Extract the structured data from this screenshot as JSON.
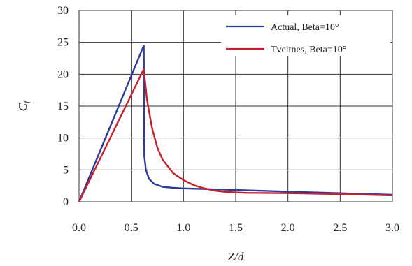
{
  "chart_data": {
    "type": "line",
    "xlabel": "Z/d",
    "ylabel_main": "C",
    "ylabel_sub": "f",
    "xlim": [
      0,
      3.0
    ],
    "ylim": [
      0,
      30
    ],
    "x_ticks": [
      "0.0",
      "0.5",
      "1.0",
      "1.5",
      "2.0",
      "2.5",
      "3.0"
    ],
    "y_ticks": [
      "0",
      "5",
      "10",
      "15",
      "20",
      "25",
      "30"
    ],
    "grid": true,
    "legend_position": "top-right",
    "series": [
      {
        "name": "Actual, Beta=10°",
        "color": "#2b3a9c",
        "points": [
          [
            0,
            0
          ],
          [
            0.62,
            24.5
          ],
          [
            0.625,
            7.2
          ],
          [
            0.64,
            5.0
          ],
          [
            0.67,
            3.6
          ],
          [
            0.72,
            2.8
          ],
          [
            0.8,
            2.35
          ],
          [
            0.9,
            2.2
          ],
          [
            1.0,
            2.1
          ],
          [
            1.2,
            2.0
          ],
          [
            1.5,
            1.85
          ],
          [
            2.0,
            1.6
          ],
          [
            2.5,
            1.35
          ],
          [
            3.0,
            1.1
          ]
        ]
      },
      {
        "name": "Tveitnes, Beta=10°",
        "color": "#c8202f",
        "points": [
          [
            0,
            0
          ],
          [
            0.62,
            20.8
          ],
          [
            0.65,
            16.0
          ],
          [
            0.7,
            11.5
          ],
          [
            0.75,
            8.5
          ],
          [
            0.8,
            6.6
          ],
          [
            0.9,
            4.5
          ],
          [
            1.0,
            3.4
          ],
          [
            1.1,
            2.6
          ],
          [
            1.2,
            2.1
          ],
          [
            1.3,
            1.75
          ],
          [
            1.4,
            1.55
          ],
          [
            1.6,
            1.4
          ],
          [
            2.0,
            1.35
          ],
          [
            2.5,
            1.2
          ],
          [
            3.0,
            1.0
          ]
        ]
      }
    ]
  }
}
